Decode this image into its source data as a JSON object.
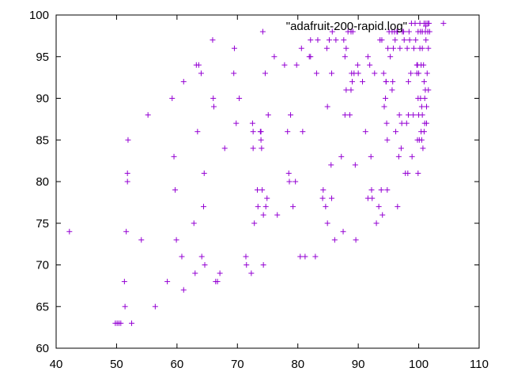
{
  "chart_data": {
    "type": "scatter",
    "title": "",
    "xlabel": "",
    "ylabel": "",
    "xlim": [
      40,
      110
    ],
    "ylim": [
      60,
      100
    ],
    "xticks": [
      40,
      50,
      60,
      70,
      80,
      90,
      100,
      110
    ],
    "yticks": [
      60,
      65,
      70,
      75,
      80,
      85,
      90,
      95,
      100
    ],
    "grid": false,
    "legend_position": "top-right",
    "marker": "plus",
    "color": "#9400d3",
    "series": [
      {
        "name": "\"adafruit-200-rapid.log\"",
        "points": [
          [
            42.2,
            74
          ],
          [
            49.8,
            63
          ],
          [
            50.1,
            63
          ],
          [
            50.4,
            63
          ],
          [
            50.7,
            63
          ],
          [
            52.5,
            63
          ],
          [
            51.3,
            68
          ],
          [
            51.4,
            65
          ],
          [
            51.6,
            74
          ],
          [
            51.8,
            80
          ],
          [
            51.8,
            81
          ],
          [
            51.9,
            85
          ],
          [
            54.1,
            73
          ],
          [
            55.2,
            88
          ],
          [
            56.4,
            65
          ],
          [
            58.4,
            68
          ],
          [
            59.2,
            90
          ],
          [
            59.5,
            83
          ],
          [
            59.7,
            79
          ],
          [
            59.9,
            73
          ],
          [
            60.8,
            71
          ],
          [
            61.1,
            67
          ],
          [
            61.1,
            92
          ],
          [
            62.8,
            75
          ],
          [
            63.0,
            69
          ],
          [
            63.2,
            94
          ],
          [
            63.4,
            86
          ],
          [
            63.6,
            94
          ],
          [
            64.0,
            93
          ],
          [
            64.1,
            71
          ],
          [
            64.4,
            77
          ],
          [
            64.5,
            81
          ],
          [
            64.6,
            70
          ],
          [
            65.9,
            97
          ],
          [
            66.0,
            90
          ],
          [
            66.1,
            89
          ],
          [
            66.4,
            68
          ],
          [
            66.7,
            68
          ],
          [
            67.1,
            69
          ],
          [
            67.9,
            84
          ],
          [
            69.4,
            93
          ],
          [
            69.5,
            96
          ],
          [
            69.8,
            87
          ],
          [
            70.3,
            90
          ],
          [
            71.4,
            71
          ],
          [
            71.5,
            70
          ],
          [
            72.3,
            69
          ],
          [
            72.5,
            87
          ],
          [
            72.6,
            86
          ],
          [
            72.6,
            84
          ],
          [
            72.8,
            75
          ],
          [
            73.3,
            79
          ],
          [
            73.4,
            77
          ],
          [
            73.8,
            86
          ],
          [
            73.9,
            86
          ],
          [
            73.9,
            85
          ],
          [
            74.0,
            84
          ],
          [
            74.1,
            79
          ],
          [
            74.2,
            98
          ],
          [
            74.3,
            76
          ],
          [
            74.3,
            70
          ],
          [
            74.6,
            93
          ],
          [
            74.7,
            77
          ],
          [
            74.9,
            78
          ],
          [
            75.1,
            88
          ],
          [
            76.1,
            95
          ],
          [
            76.6,
            76
          ],
          [
            77.8,
            94
          ],
          [
            78.3,
            86
          ],
          [
            78.5,
            81
          ],
          [
            78.6,
            80
          ],
          [
            78.8,
            88
          ],
          [
            79.2,
            77
          ],
          [
            79.6,
            80
          ],
          [
            79.8,
            94
          ],
          [
            80.4,
            71
          ],
          [
            80.6,
            96
          ],
          [
            80.8,
            86
          ],
          [
            81.2,
            71
          ],
          [
            81.9,
            95
          ],
          [
            82.1,
            97
          ],
          [
            82.1,
            95
          ],
          [
            82.9,
            71
          ],
          [
            83.1,
            93
          ],
          [
            83.3,
            97
          ],
          [
            84.1,
            78
          ],
          [
            84.2,
            79
          ],
          [
            84.6,
            77
          ],
          [
            84.8,
            96
          ],
          [
            84.9,
            89
          ],
          [
            84.9,
            75
          ],
          [
            85.2,
            97
          ],
          [
            85.5,
            82
          ],
          [
            85.6,
            78
          ],
          [
            85.6,
            93
          ],
          [
            85.7,
            98
          ],
          [
            86.3,
            97
          ],
          [
            86.1,
            73
          ],
          [
            87.2,
            83
          ],
          [
            87.5,
            74
          ],
          [
            87.6,
            97
          ],
          [
            87.8,
            95
          ],
          [
            87.8,
            88
          ],
          [
            88.0,
            96
          ],
          [
            88.0,
            91
          ],
          [
            88.3,
            98
          ],
          [
            88.6,
            88
          ],
          [
            88.8,
            91
          ],
          [
            88.8,
            98
          ],
          [
            88.9,
            93
          ],
          [
            89.0,
            92
          ],
          [
            89.1,
            98
          ],
          [
            89.3,
            93
          ],
          [
            89.5,
            82
          ],
          [
            89.6,
            73
          ],
          [
            89.9,
            94
          ],
          [
            90.0,
            93
          ],
          [
            90.7,
            92
          ],
          [
            91.2,
            86
          ],
          [
            91.6,
            78
          ],
          [
            91.6,
            95
          ],
          [
            91.9,
            94
          ],
          [
            92.1,
            83
          ],
          [
            92.2,
            79
          ],
          [
            92.3,
            78
          ],
          [
            92.7,
            93
          ],
          [
            93.0,
            75
          ],
          [
            93.4,
            77
          ],
          [
            93.6,
            97
          ],
          [
            93.8,
            79
          ],
          [
            93.9,
            97
          ],
          [
            94.0,
            76
          ],
          [
            94.2,
            93
          ],
          [
            94.3,
            89
          ],
          [
            94.5,
            90
          ],
          [
            94.6,
            92
          ],
          [
            94.6,
            92
          ],
          [
            94.7,
            87
          ],
          [
            94.8,
            85
          ],
          [
            94.8,
            79
          ],
          [
            94.9,
            96
          ],
          [
            95.1,
            98
          ],
          [
            95.3,
            95
          ],
          [
            95.6,
            91
          ],
          [
            95.6,
            98
          ],
          [
            95.7,
            92
          ],
          [
            95.8,
            96
          ],
          [
            96.0,
            98
          ],
          [
            96.1,
            97
          ],
          [
            96.2,
            86
          ],
          [
            96.4,
            98
          ],
          [
            96.5,
            77
          ],
          [
            96.5,
            98
          ],
          [
            96.7,
            83
          ],
          [
            96.8,
            88
          ],
          [
            96.9,
            96
          ],
          [
            97.1,
            84
          ],
          [
            97.2,
            87
          ],
          [
            97.3,
            98
          ],
          [
            97.5,
            98
          ],
          [
            97.6,
            97
          ],
          [
            97.8,
            81
          ],
          [
            98.0,
            87
          ],
          [
            98.1,
            96
          ],
          [
            98.2,
            81
          ],
          [
            98.3,
            92
          ],
          [
            98.3,
            88
          ],
          [
            98.4,
            98
          ],
          [
            98.5,
            97
          ],
          [
            98.7,
            93
          ],
          [
            98.8,
            99
          ],
          [
            98.9,
            83
          ],
          [
            99.1,
            88
          ],
          [
            99.2,
            96
          ],
          [
            99.4,
            99
          ],
          [
            99.5,
            97
          ],
          [
            99.7,
            94
          ],
          [
            99.7,
            93
          ],
          [
            99.8,
            94
          ],
          [
            99.8,
            85
          ],
          [
            99.9,
            90
          ],
          [
            99.9,
            81
          ],
          [
            99.9,
            98
          ],
          [
            100.0,
            93
          ],
          [
            100.0,
            88
          ],
          [
            100.1,
            85
          ],
          [
            100.2,
            96
          ],
          [
            100.2,
            99
          ],
          [
            100.3,
            98
          ],
          [
            100.3,
            90
          ],
          [
            100.4,
            94
          ],
          [
            100.4,
            86
          ],
          [
            100.5,
            89
          ],
          [
            100.5,
            85
          ],
          [
            100.6,
            88
          ],
          [
            100.6,
            96
          ],
          [
            100.6,
            98
          ],
          [
            100.7,
            84
          ],
          [
            100.8,
            94
          ],
          [
            100.9,
            86
          ],
          [
            100.9,
            99
          ],
          [
            100.9,
            92
          ],
          [
            101.0,
            87
          ],
          [
            101.0,
            90
          ],
          [
            101.1,
            91
          ],
          [
            101.1,
            98
          ],
          [
            101.2,
            97
          ],
          [
            101.2,
            99
          ],
          [
            101.3,
            89
          ],
          [
            101.3,
            87
          ],
          [
            101.4,
            93
          ],
          [
            101.5,
            98
          ],
          [
            101.5,
            99
          ],
          [
            101.6,
            91
          ],
          [
            101.6,
            96
          ],
          [
            101.7,
            99
          ],
          [
            101.8,
            98
          ],
          [
            104.1,
            99
          ]
        ]
      }
    ]
  }
}
